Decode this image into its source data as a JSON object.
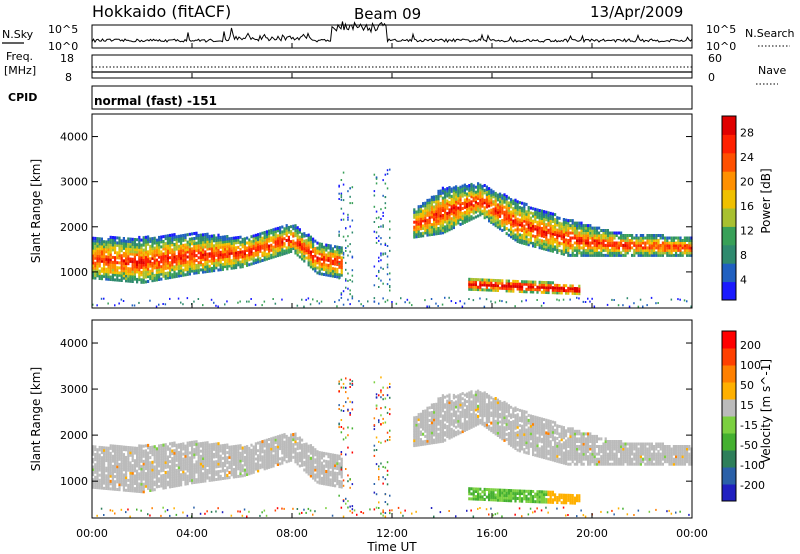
{
  "header": {
    "title": "Hokkaido (fitACF)",
    "beam": "Beam 09",
    "date": "13/Apr/2009"
  },
  "panels": {
    "nsky_label": "N.Sky",
    "nsky_ticks": [
      "10^5",
      "10^0"
    ],
    "nsearch_label": "N.Search",
    "nsearch_ticks": [
      "10^5",
      "10^0"
    ],
    "freq_label": "Freq.",
    "freq_unit": "[MHz]",
    "freq_ticks": [
      "18",
      "8"
    ],
    "nave_label": "Nave",
    "nave_ticks": [
      "60",
      "0"
    ],
    "cpid_label": "CPID",
    "cpid_value": "normal (fast) -151"
  },
  "colors": {
    "power": [
      "#1a1aff",
      "#2060c0",
      "#2f8a6e",
      "#38a058",
      "#a8c030",
      "#f0c000",
      "#ff9000",
      "#ff5000",
      "#ff2000",
      "#e00000"
    ],
    "velocity_pos": [
      "#2020c0",
      "#2a60a8",
      "#2e7f5a",
      "#44b030",
      "#7bd040"
    ],
    "velocity_ground": "#bbbbbb",
    "velocity_neg": [
      "#ffb000",
      "#ff8000",
      "#ff4000",
      "#ff0000"
    ]
  },
  "chart_data": [
    {
      "type": "heatmap",
      "name": "Power",
      "ylabel": "Slant Range [km]",
      "yticks": [
        "4000",
        "3000",
        "2000",
        "1000"
      ],
      "colorbar_label": "Power [dB]",
      "colorbar_ticks": [
        "28",
        "24",
        "20",
        "16",
        "12",
        "8",
        "4"
      ],
      "ylim": [
        200,
        4500
      ]
    },
    {
      "type": "heatmap",
      "name": "Velocity",
      "ylabel": "Slant Range [km]",
      "yticks": [
        "4000",
        "3000",
        "2000",
        "1000"
      ],
      "colorbar_label": "Velocity [m s^-1]",
      "colorbar_ticks": [
        "200",
        "100",
        "50",
        "15",
        "-15",
        "-50",
        "-100",
        "-200"
      ],
      "ylim": [
        200,
        4500
      ]
    }
  ],
  "xaxis": {
    "label": "Time UT",
    "ticks": [
      "00:00",
      "04:00",
      "08:00",
      "12:00",
      "16:00",
      "20:00",
      "00:00"
    ]
  }
}
